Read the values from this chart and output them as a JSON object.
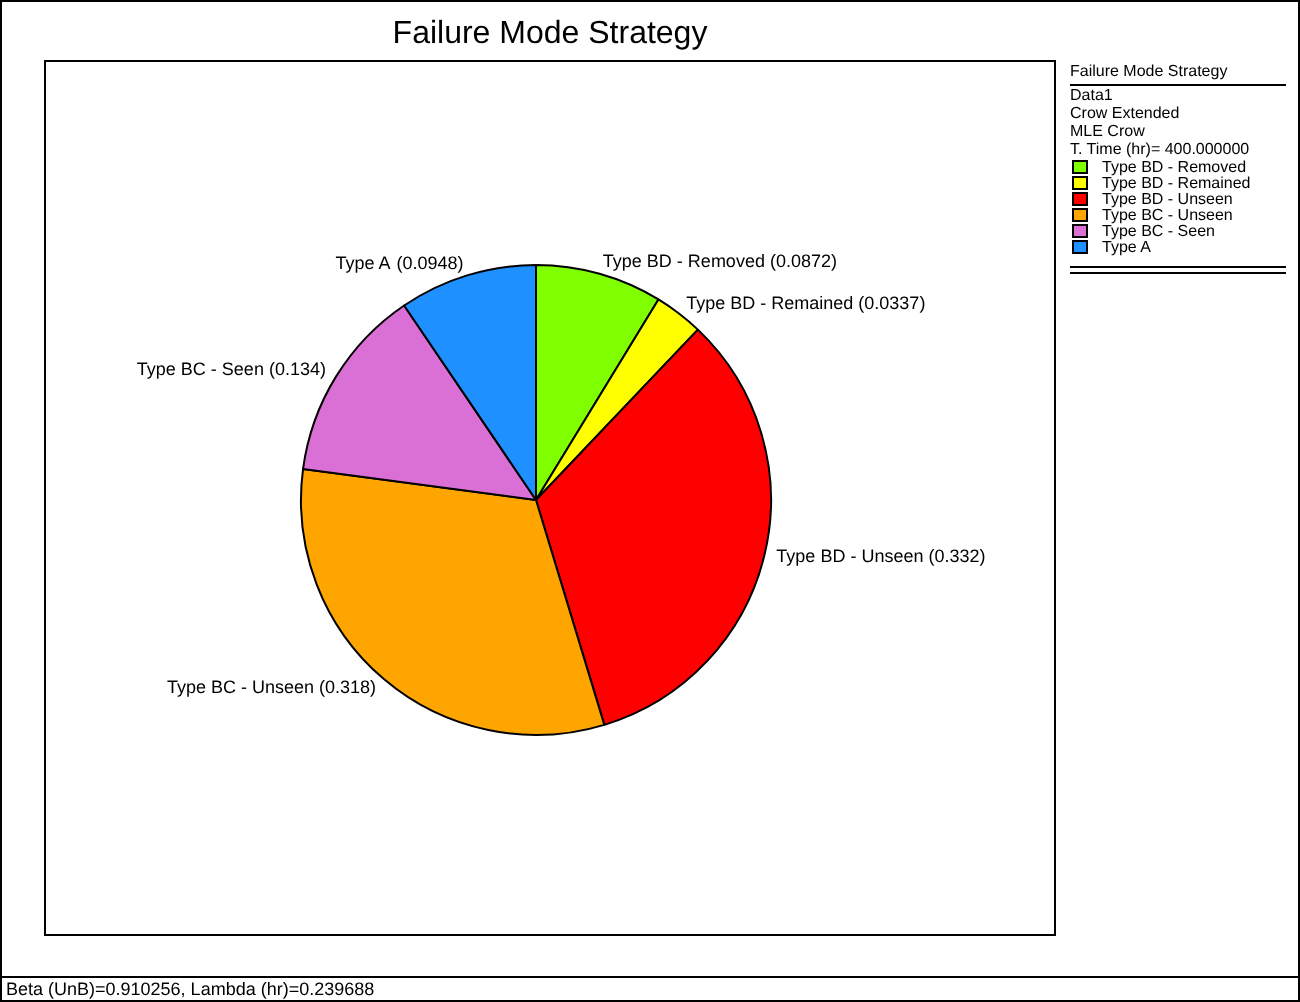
{
  "chart_data": {
    "type": "pie",
    "title": "Failure Mode Strategy",
    "legend_title": "Failure Mode Strategy",
    "categories": [
      "Type BD - Removed",
      "Type BD - Remained",
      "Type BD - Unseen",
      "Type BC - Unseen",
      "Type BC - Seen",
      "Type A"
    ],
    "values": [
      0.0872,
      0.0337,
      0.332,
      0.318,
      0.134,
      0.0948
    ],
    "colors": [
      "#7fff00",
      "#ffff00",
      "#ff0000",
      "#ffa500",
      "#da70d6",
      "#1e90ff"
    ],
    "value_labels": [
      "(0.0872)",
      "(0.0337)",
      "(0.332)",
      "(0.318)",
      "(0.134)",
      "(0.0948)"
    ],
    "legend": "top right",
    "annotations": [
      "Data1",
      "Crow Extended",
      "MLE Crow",
      "T. Time (hr)= 400.000000",
      "Beta (UnB)=0.910256, Lambda (hr)=0.239688"
    ]
  }
}
